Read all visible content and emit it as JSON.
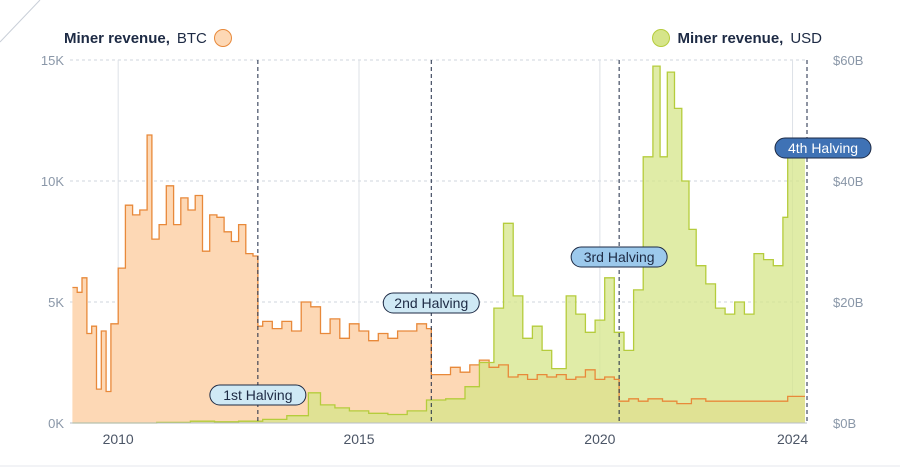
{
  "legend": {
    "btc_bold": "Miner revenue,",
    "btc_unit": "BTC",
    "usd_bold": "Miner revenue,",
    "usd_unit": "USD"
  },
  "colors": {
    "btc_fill": "#fdd8b5",
    "btc_line": "#e8893a",
    "usd_fill": "#d6e58a",
    "usd_line": "#b5cc3c",
    "overlap_fill": "#d8cc82",
    "halving_light": "#cfe9f5",
    "halving_mid": "#9cc9ec",
    "halving_dark": "#3f72b5",
    "text_dark": "#1d2a44",
    "axis_text": "#8a97a8"
  },
  "chart_data": {
    "type": "area",
    "x_range": [
      2009.0,
      2024.3
    ],
    "left_axis": {
      "label": "Miner revenue, BTC",
      "range": [
        0,
        15000
      ],
      "ticks": [
        0,
        5000,
        10000,
        15000
      ],
      "tick_labels": [
        "0K",
        "5K",
        "10K",
        "15K"
      ]
    },
    "right_axis": {
      "label": "Miner revenue, USD",
      "range": [
        0,
        60
      ],
      "ticks": [
        0,
        20,
        40,
        60
      ],
      "tick_labels": [
        "$0B",
        "$20B",
        "$40B",
        "$60B"
      ]
    },
    "x_ticks": [
      2010,
      2015,
      2020,
      2024
    ],
    "x_tick_labels": [
      "2010",
      "2015",
      "2020",
      "2024"
    ],
    "grid": true,
    "series": [
      {
        "name": "Miner revenue, BTC",
        "axis": "left",
        "x": [
          2009.05,
          2009.15,
          2009.25,
          2009.35,
          2009.45,
          2009.55,
          2009.65,
          2009.75,
          2009.85,
          2010.0,
          2010.15,
          2010.3,
          2010.45,
          2010.6,
          2010.7,
          2010.85,
          2011.0,
          2011.15,
          2011.3,
          2011.45,
          2011.6,
          2011.75,
          2011.9,
          2012.05,
          2012.2,
          2012.35,
          2012.5,
          2012.65,
          2012.8,
          2012.9,
          2013.0,
          2013.2,
          2013.4,
          2013.6,
          2013.8,
          2014.0,
          2014.2,
          2014.4,
          2014.6,
          2014.8,
          2015.0,
          2015.2,
          2015.4,
          2015.6,
          2015.8,
          2016.0,
          2016.2,
          2016.4,
          2016.5,
          2016.7,
          2016.9,
          2017.1,
          2017.3,
          2017.5,
          2017.7,
          2017.9,
          2018.1,
          2018.3,
          2018.5,
          2018.7,
          2018.9,
          2019.1,
          2019.3,
          2019.5,
          2019.7,
          2019.9,
          2020.1,
          2020.3,
          2020.4,
          2020.6,
          2020.8,
          2021.0,
          2021.3,
          2021.6,
          2021.9,
          2022.2,
          2022.5,
          2022.8,
          2023.1,
          2023.4,
          2023.7,
          2023.9
        ],
        "values": [
          5600,
          5400,
          6000,
          3700,
          4000,
          1400,
          3800,
          1300,
          4100,
          6400,
          9000,
          8600,
          8800,
          11900,
          7600,
          8200,
          9800,
          8200,
          9300,
          8800,
          9400,
          7100,
          8600,
          8500,
          7900,
          7500,
          8200,
          7000,
          6900,
          4000,
          4200,
          3900,
          4200,
          3800,
          5000,
          4800,
          3700,
          4300,
          3500,
          4100,
          3800,
          3400,
          3700,
          3500,
          3800,
          3800,
          4100,
          3900,
          2000,
          2000,
          2300,
          2100,
          2400,
          2600,
          2300,
          2400,
          1900,
          2000,
          1800,
          2000,
          1900,
          2000,
          1800,
          1900,
          2200,
          1800,
          1900,
          1800,
          900,
          1000,
          900,
          1000,
          900,
          800,
          1000,
          900,
          900,
          900,
          900,
          900,
          900,
          1100
        ]
      },
      {
        "name": "Miner revenue, USD",
        "axis": "right",
        "x": [
          2009.05,
          2010.8,
          2011.5,
          2012.0,
          2012.5,
          2013.0,
          2013.5,
          2013.95,
          2014.2,
          2014.5,
          2014.8,
          2015.2,
          2015.6,
          2016.0,
          2016.4,
          2016.8,
          2017.2,
          2017.5,
          2017.8,
          2018.0,
          2018.2,
          2018.4,
          2018.6,
          2018.8,
          2019.0,
          2019.3,
          2019.5,
          2019.7,
          2019.9,
          2020.1,
          2020.3,
          2020.5,
          2020.7,
          2020.9,
          2021.1,
          2021.25,
          2021.4,
          2021.55,
          2021.7,
          2021.85,
          2022.0,
          2022.2,
          2022.4,
          2022.6,
          2022.8,
          2023.0,
          2023.2,
          2023.4,
          2023.6,
          2023.8,
          2023.9
        ],
        "values": [
          0,
          0.1,
          0.3,
          0.2,
          0.3,
          0.6,
          1.2,
          5,
          3,
          2.5,
          2,
          1.6,
          1.4,
          2,
          3.8,
          4,
          6,
          10,
          19,
          33,
          21,
          14,
          16,
          12,
          9,
          21,
          18,
          15,
          17,
          24,
          15,
          12,
          22,
          44,
          59,
          44,
          58,
          52,
          40,
          32,
          26,
          23,
          19,
          18,
          20,
          18,
          28,
          27,
          26,
          34,
          47
        ]
      }
    ],
    "annotations": [
      {
        "label": "1st Halving",
        "x": 2012.9
      },
      {
        "label": "2nd Halving",
        "x": 2016.5
      },
      {
        "label": "3rd Halving",
        "x": 2020.4
      },
      {
        "label": "4th Halving",
        "x": 2024.3
      }
    ]
  }
}
